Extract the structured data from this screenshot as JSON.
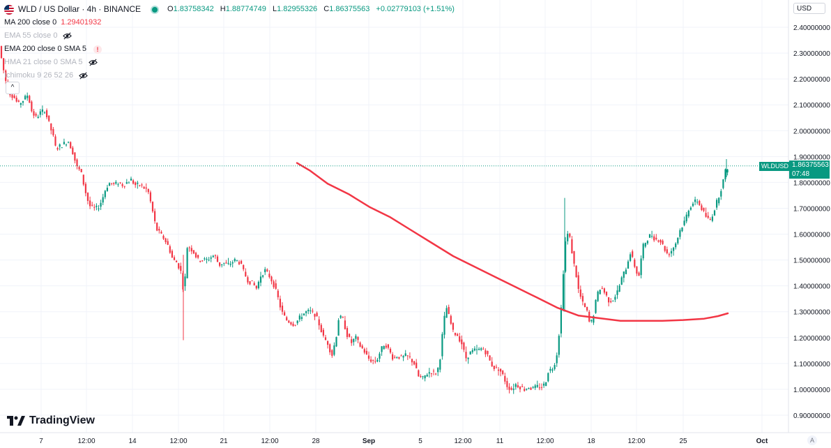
{
  "header": {
    "symbol_title": "WLD / US Dollar · 4h · BINANCE",
    "ohlc": {
      "o_label": "O",
      "o": "1.83758342",
      "h_label": "H",
      "h": "1.88774749",
      "l_label": "L",
      "l": "1.82955326",
      "c_label": "C",
      "c": "1.86375563",
      "change": "+0.02779103 (+1.51%)"
    }
  },
  "indicators": [
    {
      "name": "MA 200 close 0",
      "value": "1.29401932",
      "muted": false
    },
    {
      "name": "EMA 55 close 0",
      "value": "",
      "muted": true
    },
    {
      "name": "EMA 200 close 0 SMA 5",
      "value": "",
      "muted": false
    },
    {
      "name": "HMA 21 close 0 SMA 5",
      "value": "",
      "muted": true
    },
    {
      "name": "Ichimoku 9 26 52 26",
      "value": "",
      "muted": true
    }
  ],
  "currency_button": "USD",
  "current_price": {
    "symbol": "WLDUSD",
    "price": "1.86375563",
    "countdown": "07:48"
  },
  "branding": "TradingView",
  "auto_label": "A",
  "colors": {
    "up": "#089981",
    "down": "#f23645",
    "ma200": "#f23645",
    "grid": "#f0f3fa"
  },
  "chart_data": {
    "type": "candlestick",
    "title": "WLD / US Dollar · 4h · BINANCE",
    "y_axis": {
      "ticks": [
        "2.40000000",
        "2.30000000",
        "2.20000000",
        "2.10000000",
        "2.00000000",
        "1.90000000",
        "1.80000000",
        "1.70000000",
        "1.60000000",
        "1.50000000",
        "1.40000000",
        "1.30000000",
        "1.20000000",
        "1.10000000",
        "1.00000000",
        "0.90000000"
      ],
      "ylim": [
        0.87,
        2.44
      ]
    },
    "x_axis": {
      "ticks": [
        "7",
        "12:00",
        "14",
        "12:00",
        "21",
        "12:00",
        "28",
        "Sep",
        "5",
        "12:00",
        "11",
        "12:00",
        "18",
        "12:00",
        "25",
        "Oct"
      ]
    },
    "price_path": [
      [
        0,
        2.31
      ],
      [
        6,
        2.22
      ],
      [
        12,
        2.15
      ],
      [
        20,
        2.13
      ],
      [
        26,
        2.1
      ],
      [
        34,
        2.12
      ],
      [
        40,
        2.14
      ],
      [
        46,
        2.07
      ],
      [
        52,
        2.05
      ],
      [
        58,
        2.07
      ],
      [
        64,
        2.08
      ],
      [
        70,
        2.03
      ],
      [
        76,
        1.98
      ],
      [
        80,
        1.93
      ],
      [
        86,
        1.94
      ],
      [
        92,
        1.95
      ],
      [
        98,
        1.96
      ],
      [
        104,
        1.92
      ],
      [
        110,
        1.86
      ],
      [
        116,
        1.84
      ],
      [
        122,
        1.77
      ],
      [
        128,
        1.71
      ],
      [
        134,
        1.7
      ],
      [
        140,
        1.7
      ],
      [
        146,
        1.73
      ],
      [
        152,
        1.78
      ],
      [
        158,
        1.8
      ],
      [
        164,
        1.79
      ],
      [
        170,
        1.8
      ],
      [
        176,
        1.79
      ],
      [
        182,
        1.8
      ],
      [
        188,
        1.81
      ],
      [
        194,
        1.79
      ],
      [
        200,
        1.79
      ],
      [
        206,
        1.78
      ],
      [
        212,
        1.77
      ],
      [
        218,
        1.7
      ],
      [
        224,
        1.62
      ],
      [
        230,
        1.6
      ],
      [
        236,
        1.58
      ],
      [
        242,
        1.55
      ],
      [
        248,
        1.5
      ],
      [
        254,
        1.49
      ],
      [
        260,
        1.45
      ],
      [
        264,
        1.36
      ],
      [
        268,
        1.55
      ],
      [
        272,
        1.55
      ],
      [
        278,
        1.53
      ],
      [
        284,
        1.5
      ],
      [
        290,
        1.5
      ],
      [
        296,
        1.5
      ],
      [
        302,
        1.51
      ],
      [
        308,
        1.52
      ],
      [
        314,
        1.48
      ],
      [
        320,
        1.49
      ],
      [
        326,
        1.48
      ],
      [
        332,
        1.49
      ],
      [
        338,
        1.5
      ],
      [
        344,
        1.49
      ],
      [
        350,
        1.45
      ],
      [
        356,
        1.42
      ],
      [
        362,
        1.41
      ],
      [
        368,
        1.39
      ],
      [
        374,
        1.44
      ],
      [
        380,
        1.46
      ],
      [
        386,
        1.44
      ],
      [
        392,
        1.41
      ],
      [
        398,
        1.36
      ],
      [
        404,
        1.3
      ],
      [
        410,
        1.27
      ],
      [
        416,
        1.26
      ],
      [
        422,
        1.25
      ],
      [
        428,
        1.27
      ],
      [
        434,
        1.29
      ],
      [
        440,
        1.3
      ],
      [
        446,
        1.3
      ],
      [
        452,
        1.29
      ],
      [
        458,
        1.25
      ],
      [
        464,
        1.2
      ],
      [
        470,
        1.18
      ],
      [
        476,
        1.13
      ],
      [
        482,
        1.2
      ],
      [
        486,
        1.28
      ],
      [
        492,
        1.27
      ],
      [
        498,
        1.21
      ],
      [
        504,
        1.18
      ],
      [
        510,
        1.2
      ],
      [
        516,
        1.17
      ],
      [
        522,
        1.15
      ],
      [
        528,
        1.12
      ],
      [
        534,
        1.11
      ],
      [
        540,
        1.11
      ],
      [
        546,
        1.15
      ],
      [
        552,
        1.18
      ],
      [
        558,
        1.15
      ],
      [
        564,
        1.12
      ],
      [
        570,
        1.13
      ],
      [
        576,
        1.12
      ],
      [
        582,
        1.13
      ],
      [
        588,
        1.12
      ],
      [
        594,
        1.1
      ],
      [
        600,
        1.05
      ],
      [
        606,
        1.04
      ],
      [
        612,
        1.06
      ],
      [
        618,
        1.07
      ],
      [
        624,
        1.06
      ],
      [
        630,
        1.09
      ],
      [
        636,
        1.25
      ],
      [
        640,
        1.32
      ],
      [
        644,
        1.28
      ],
      [
        650,
        1.22
      ],
      [
        656,
        1.21
      ],
      [
        662,
        1.18
      ],
      [
        668,
        1.12
      ],
      [
        674,
        1.14
      ],
      [
        680,
        1.15
      ],
      [
        686,
        1.15
      ],
      [
        692,
        1.16
      ],
      [
        698,
        1.14
      ],
      [
        704,
        1.1
      ],
      [
        710,
        1.08
      ],
      [
        716,
        1.08
      ],
      [
        722,
        1.05
      ],
      [
        728,
        1.01
      ],
      [
        734,
        1.0
      ],
      [
        740,
        1.02
      ],
      [
        746,
        1.01
      ],
      [
        752,
        1.0
      ],
      [
        758,
        1.01
      ],
      [
        764,
        1.0
      ],
      [
        770,
        1.01
      ],
      [
        776,
        1.01
      ],
      [
        782,
        1.02
      ],
      [
        786,
        1.07
      ],
      [
        792,
        1.08
      ],
      [
        798,
        1.12
      ],
      [
        802,
        1.22
      ],
      [
        806,
        1.35
      ],
      [
        810,
        1.56
      ],
      [
        814,
        1.6
      ],
      [
        818,
        1.58
      ],
      [
        822,
        1.5
      ],
      [
        826,
        1.45
      ],
      [
        830,
        1.38
      ],
      [
        836,
        1.33
      ],
      [
        842,
        1.3
      ],
      [
        846,
        1.25
      ],
      [
        850,
        1.27
      ],
      [
        856,
        1.36
      ],
      [
        862,
        1.4
      ],
      [
        868,
        1.37
      ],
      [
        874,
        1.34
      ],
      [
        880,
        1.35
      ],
      [
        886,
        1.38
      ],
      [
        892,
        1.43
      ],
      [
        898,
        1.47
      ],
      [
        904,
        1.53
      ],
      [
        910,
        1.48
      ],
      [
        916,
        1.43
      ],
      [
        922,
        1.55
      ],
      [
        928,
        1.58
      ],
      [
        934,
        1.6
      ],
      [
        940,
        1.58
      ],
      [
        946,
        1.58
      ],
      [
        952,
        1.55
      ],
      [
        958,
        1.52
      ],
      [
        964,
        1.54
      ],
      [
        970,
        1.57
      ],
      [
        976,
        1.62
      ],
      [
        982,
        1.65
      ],
      [
        988,
        1.7
      ],
      [
        994,
        1.72
      ],
      [
        1000,
        1.73
      ],
      [
        1006,
        1.7
      ],
      [
        1012,
        1.67
      ],
      [
        1018,
        1.65
      ],
      [
        1024,
        1.69
      ],
      [
        1030,
        1.74
      ],
      [
        1036,
        1.79
      ],
      [
        1040,
        1.84
      ],
      [
        1044,
        1.86
      ]
    ],
    "ma200_path": [
      [
        426,
        1.875
      ],
      [
        445,
        1.845
      ],
      [
        470,
        1.795
      ],
      [
        500,
        1.755
      ],
      [
        530,
        1.705
      ],
      [
        560,
        1.665
      ],
      [
        590,
        1.615
      ],
      [
        620,
        1.565
      ],
      [
        650,
        1.515
      ],
      [
        680,
        1.475
      ],
      [
        710,
        1.435
      ],
      [
        740,
        1.395
      ],
      [
        770,
        1.355
      ],
      [
        800,
        1.315
      ],
      [
        830,
        1.285
      ],
      [
        860,
        1.275
      ],
      [
        890,
        1.265
      ],
      [
        920,
        1.265
      ],
      [
        950,
        1.265
      ],
      [
        980,
        1.268
      ],
      [
        1010,
        1.273
      ],
      [
        1030,
        1.283
      ],
      [
        1044,
        1.294
      ]
    ],
    "current_price": 1.86375563
  }
}
